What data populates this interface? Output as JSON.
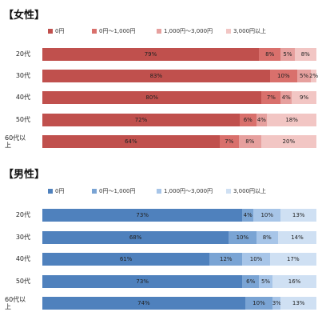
{
  "chart_data": [
    {
      "type": "bar",
      "orientation": "horizontal",
      "stacked": true,
      "percent": true,
      "title": "【女性】",
      "categories": [
        "20代",
        "30代",
        "40代",
        "50代",
        "60代以上"
      ],
      "series": [
        {
          "name": "0円",
          "color": "#c0504d",
          "values": [
            79,
            83,
            80,
            72,
            64
          ]
        },
        {
          "name": "0円〜1,000円",
          "color": "#d9706c",
          "values": [
            8,
            10,
            7,
            6,
            7
          ]
        },
        {
          "name": "1,000円〜3,000円",
          "color": "#e6a09e",
          "values": [
            5,
            5,
            4,
            4,
            8
          ]
        },
        {
          "name": "3,000円以上",
          "color": "#f2c6c4",
          "values": [
            8,
            2,
            9,
            18,
            20
          ]
        }
      ],
      "legend_position": "top",
      "grid": false
    },
    {
      "type": "bar",
      "orientation": "horizontal",
      "stacked": true,
      "percent": true,
      "title": "【男性】",
      "categories": [
        "20代",
        "30代",
        "40代",
        "50代",
        "60代以上"
      ],
      "series": [
        {
          "name": "0円",
          "color": "#4f81bd",
          "values": [
            73,
            68,
            61,
            73,
            74
          ]
        },
        {
          "name": "0円〜1,000円",
          "color": "#7aa4d4",
          "values": [
            4,
            10,
            12,
            6,
            10
          ]
        },
        {
          "name": "1,000円〜3,000円",
          "color": "#a7c5e8",
          "values": [
            10,
            8,
            10,
            5,
            3
          ]
        },
        {
          "name": "3,000円以上",
          "color": "#cfe0f3",
          "values": [
            13,
            14,
            17,
            16,
            13
          ]
        }
      ],
      "legend_position": "top",
      "grid": false
    }
  ]
}
